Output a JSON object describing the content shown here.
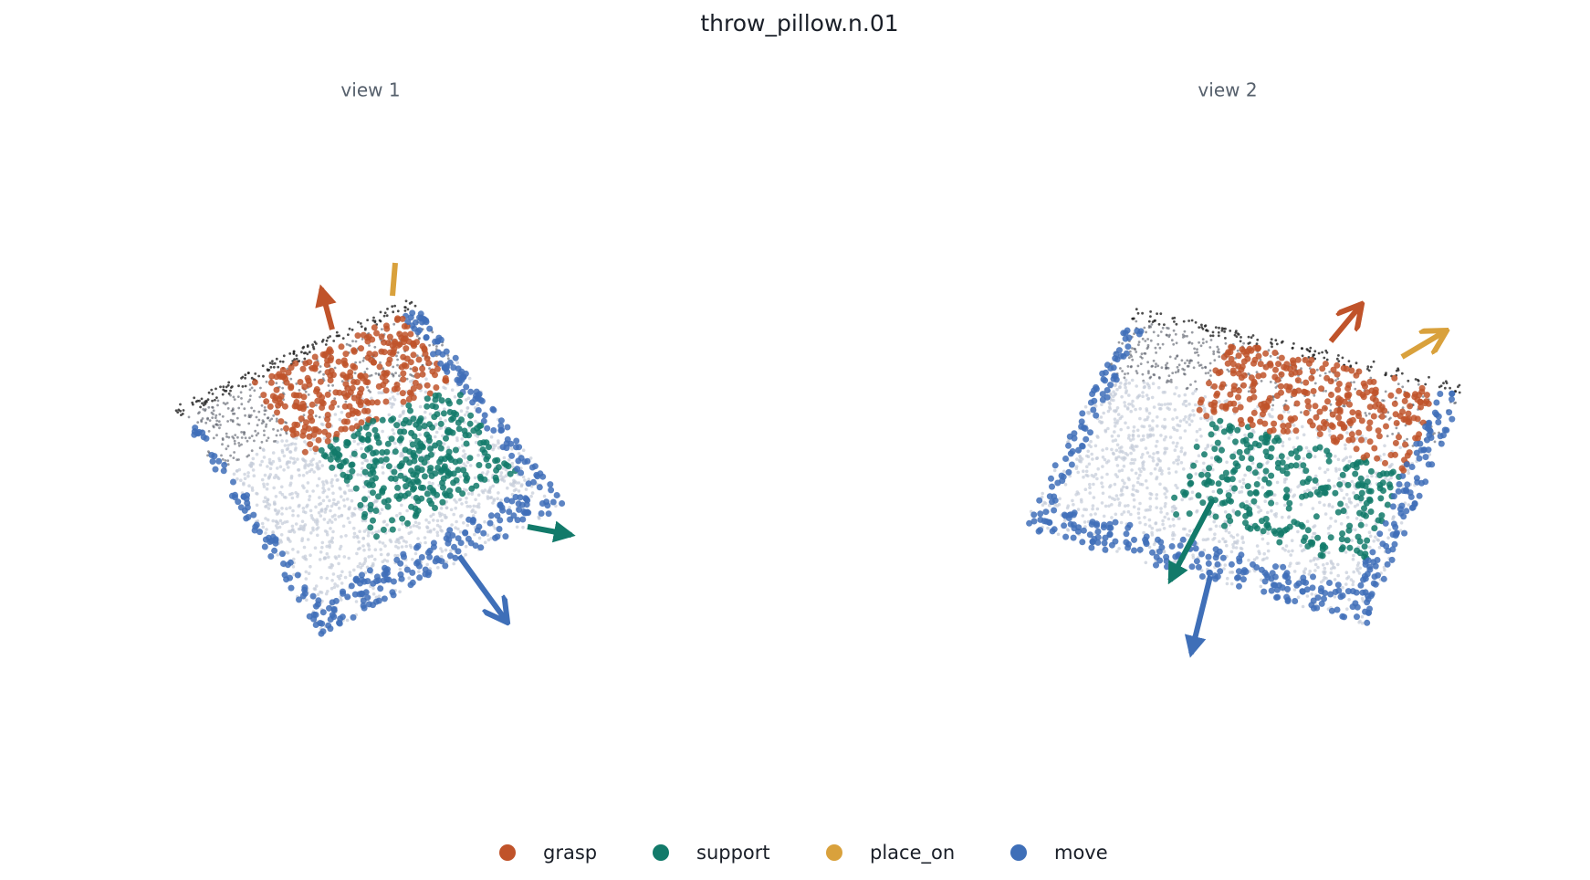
{
  "title": "throw_pillow.n.01",
  "panels": [
    {
      "title": "view 1"
    },
    {
      "title": "view 2"
    }
  ],
  "legend": [
    {
      "label": "grasp",
      "color": "#c0532a"
    },
    {
      "label": "support",
      "color": "#127a6a"
    },
    {
      "label": "place_on",
      "color": "#d9a13c"
    },
    {
      "label": "move",
      "color": "#3f6fb8"
    }
  ]
}
